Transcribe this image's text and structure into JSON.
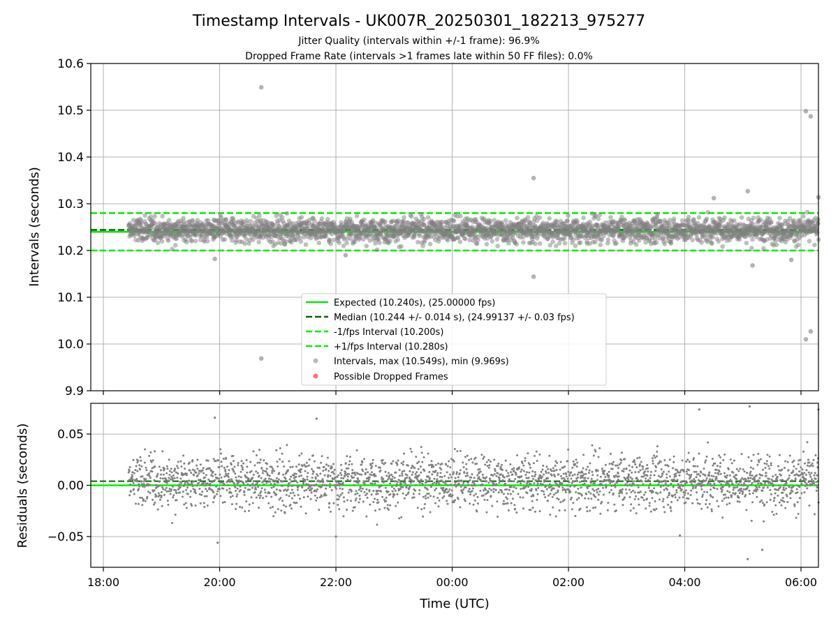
{
  "chart_data": [
    {
      "type": "scatter",
      "title": "Timestamp Intervals - UK007R_20250301_182213_975277",
      "subtitle_lines": [
        "Jitter Quality (intervals within +/-1 frame): 96.9%",
        "Dropped Frame Rate (intervals >1 frames late within 50 FF files): 0.0%"
      ],
      "xlabel": "",
      "ylabel": "Intervals (seconds)",
      "ylim": [
        9.9,
        10.6
      ],
      "yticks": [
        9.9,
        10.0,
        10.1,
        10.2,
        10.3,
        10.4,
        10.5,
        10.6
      ],
      "ytick_labels": [
        "9.9",
        "10.0",
        "10.1",
        "10.2",
        "10.3",
        "10.4",
        "10.5",
        "10.6"
      ],
      "grid": true,
      "legend_position": "lower-center",
      "colors": {
        "expected": "#00ee00",
        "median": "#006400",
        "bounds": "#00ee00",
        "points": "#808080",
        "dropped": "#ff0000"
      },
      "series": [
        {
          "name": "Expected (10.240s), (25.00000 fps)",
          "kind": "hline",
          "style": "solid",
          "y": 10.24
        },
        {
          "name": "Median (10.244 +/- 0.014 s), (24.99137 +/- 0.03 fps)",
          "kind": "hline",
          "style": "dashed",
          "y": 10.244
        },
        {
          "name": "-1/fps Interval (10.200s)",
          "kind": "hline",
          "style": "dashed",
          "y": 10.2
        },
        {
          "name": "+1/fps Interval (10.280s)",
          "kind": "hline",
          "style": "dashed",
          "y": 10.28
        },
        {
          "name": "Intervals, max (10.549s), min (9.969s)",
          "kind": "points",
          "x_range": [
            "18:26",
            "06:18"
          ],
          "central_value": 10.244,
          "spread": 0.014,
          "bulk_range": [
            10.2,
            10.29
          ],
          "outliers": [
            {
              "x": "20:43",
              "y": 10.549
            },
            {
              "x": "20:43",
              "y": 9.969
            },
            {
              "x": "01:24",
              "y": 10.355
            },
            {
              "x": "01:24",
              "y": 10.144
            },
            {
              "x": "06:05",
              "y": 10.498
            },
            {
              "x": "06:10",
              "y": 10.487
            },
            {
              "x": "06:05",
              "y": 10.01
            },
            {
              "x": "06:10",
              "y": 10.027
            },
            {
              "x": "19:55",
              "y": 10.182
            },
            {
              "x": "22:10",
              "y": 10.19
            },
            {
              "x": "04:30",
              "y": 10.312
            },
            {
              "x": "05:05",
              "y": 10.327
            },
            {
              "x": "05:10",
              "y": 10.168
            },
            {
              "x": "06:18",
              "y": 10.314
            },
            {
              "x": "05:50",
              "y": 10.18
            }
          ]
        },
        {
          "name": "Possible Dropped Frames",
          "kind": "points",
          "count": 0
        }
      ]
    },
    {
      "type": "scatter",
      "title": "",
      "xlabel": "Time (UTC)",
      "ylabel": "Residuals (seconds)",
      "ylim": [
        -0.08,
        0.08
      ],
      "yticks": [
        -0.05,
        0.0,
        0.05
      ],
      "ytick_labels": [
        "−0.05",
        "0.00",
        "0.05"
      ],
      "xlim": [
        "17:47",
        "06:18"
      ],
      "xticks": [
        "18:00",
        "20:00",
        "22:00",
        "00:00",
        "02:00",
        "04:00",
        "06:00"
      ],
      "grid": true,
      "series": [
        {
          "kind": "hline",
          "style": "solid",
          "y": 0.0
        },
        {
          "kind": "hline",
          "style": "dashed",
          "y": 0.004
        },
        {
          "kind": "points",
          "x_range": [
            "18:26",
            "06:18"
          ],
          "central_value": 0.004,
          "bulk_range": [
            -0.03,
            0.04
          ],
          "outliers": [
            {
              "x": "05:07",
              "y": 0.077
            },
            {
              "x": "06:18",
              "y": 0.074
            },
            {
              "x": "05:05",
              "y": -0.072
            },
            {
              "x": "19:55",
              "y": 0.066
            },
            {
              "x": "21:40",
              "y": 0.065
            },
            {
              "x": "22:00",
              "y": -0.05
            },
            {
              "x": "19:58",
              "y": -0.056
            },
            {
              "x": "04:15",
              "y": 0.074
            },
            {
              "x": "05:20",
              "y": -0.063
            },
            {
              "x": "03:55",
              "y": -0.049
            }
          ]
        }
      ]
    }
  ]
}
